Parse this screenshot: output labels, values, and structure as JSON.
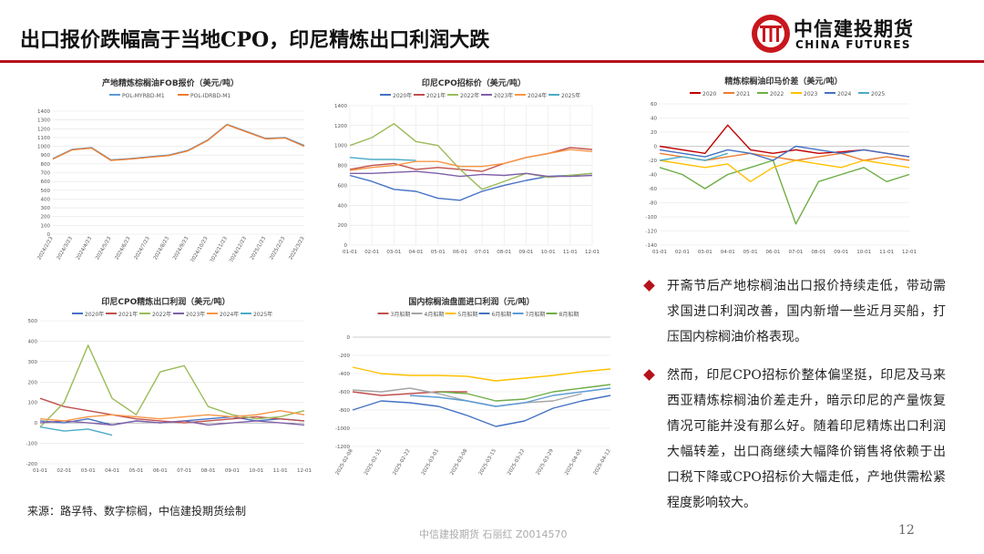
{
  "slide": {
    "title": "出口报价跌幅高于当地CPO，印尼精炼出口利润大跌",
    "logo_cn": "中信建投期货",
    "logo_en": "CHINA FUTURES",
    "source": "来源：路孚特、数字棕榈，中信建投期货绘制",
    "footer": "中信建投期货  石丽红  Z0014570",
    "page": "12",
    "accent": "#b5121b"
  },
  "bullets": [
    {
      "text": "开斋节后产地棕榈油出口报价持续走低，带动需求国进口利润改善，国内新增一些近月买船，打压国内棕榈油价格表现。"
    },
    {
      "text": "然而，印尼CPO招标价整体偏坚挺，印尼及马来西亚精炼棕榈油价差走升，暗示印尼的产量恢复情况可能并没有那么好。随着印尼精炼出口利润大幅转差，出口商继续大幅降价销售将依赖于出口税下降或CPO招标价大幅走低，产地供需松紧程度影响较大。"
    }
  ],
  "chart_data": [
    {
      "type": "line",
      "title": "产地精炼棕榈油FOB报价（美元/吨）",
      "x": [
        "2024/2/23",
        "2024/3/23",
        "2024/4/23",
        "2024/5/23",
        "2024/6/23",
        "2024/7/23",
        "2024/8/23",
        "2024/9/23",
        "2024/10/23",
        "2024/11/23",
        "2024/12/23",
        "2025/1/23",
        "2025/2/23",
        "2025/3/23"
      ],
      "ylim": [
        0,
        1400
      ],
      "yticks": [
        0,
        100,
        200,
        300,
        400,
        500,
        600,
        700,
        800,
        900,
        1000,
        1100,
        1200,
        1300,
        1400
      ],
      "series": [
        {
          "name": "POL-MYRBD-M1",
          "color": "#5b9bd5",
          "values": [
            860,
            965,
            985,
            845,
            860,
            880,
            900,
            955,
            1070,
            1250,
            1170,
            1090,
            1100,
            1010
          ]
        },
        {
          "name": "POL-IDRBD-M1",
          "color": "#ed7d31",
          "values": [
            855,
            960,
            980,
            840,
            855,
            875,
            895,
            950,
            1065,
            1245,
            1165,
            1085,
            1095,
            1000
          ]
        }
      ]
    },
    {
      "type": "line",
      "title": "印尼CPO招标价（美元/吨）",
      "x": [
        "01-01",
        "02-01",
        "03-01",
        "04-01",
        "05-01",
        "06-01",
        "07-01",
        "08-01",
        "09-01",
        "10-01",
        "11-01",
        "12-01"
      ],
      "ylim": [
        0,
        1400
      ],
      "yticks": [
        0,
        200,
        400,
        600,
        800,
        1000,
        1200,
        1400
      ],
      "series": [
        {
          "name": "2020年",
          "color": "#4472c4",
          "values": [
            700,
            640,
            560,
            540,
            470,
            450,
            540,
            600,
            650,
            690,
            700,
            720
          ]
        },
        {
          "name": "2021年",
          "color": "#c0504d",
          "values": [
            760,
            800,
            820,
            760,
            780,
            760,
            740,
            820,
            880,
            920,
            980,
            960
          ]
        },
        {
          "name": "2022年",
          "color": "#9bbb59",
          "values": [
            1000,
            1080,
            1220,
            1040,
            1000,
            760,
            560,
            640,
            720,
            680,
            700,
            720
          ]
        },
        {
          "name": "2023年",
          "color": "#7f60a8",
          "values": [
            720,
            720,
            730,
            740,
            720,
            690,
            710,
            700,
            720,
            690,
            690,
            700
          ]
        },
        {
          "name": "2024年",
          "color": "#f79646",
          "values": [
            750,
            780,
            800,
            840,
            840,
            790,
            790,
            820,
            880,
            920,
            960,
            940
          ]
        },
        {
          "name": "2025年",
          "color": "#4bacc6",
          "values": [
            880,
            860,
            860,
            850,
            null,
            null,
            null,
            null,
            null,
            null,
            null,
            null
          ]
        }
      ]
    },
    {
      "type": "line",
      "title": "精炼棕榈油印马价差（美元/吨）",
      "x": [
        "01-01",
        "02-01",
        "03-01",
        "04-01",
        "05-01",
        "06-01",
        "07-01",
        "08-01",
        "09-01",
        "10-01",
        "11-01",
        "12-01"
      ],
      "ylim": [
        -140,
        60
      ],
      "yticks": [
        -140,
        -120,
        -100,
        -80,
        -60,
        -40,
        -20,
        0,
        20,
        40,
        60
      ],
      "series": [
        {
          "name": "2020",
          "color": "#c00000",
          "values": [
            0,
            -5,
            -10,
            30,
            -5,
            -10,
            -5,
            -10,
            -8,
            -5,
            -10,
            -15
          ]
        },
        {
          "name": "2021",
          "color": "#ed7d31",
          "values": [
            -10,
            -15,
            -20,
            -15,
            -10,
            -15,
            -20,
            -15,
            -10,
            -20,
            -15,
            -20
          ]
        },
        {
          "name": "2022",
          "color": "#70ad47",
          "values": [
            -30,
            -40,
            -60,
            -40,
            -30,
            -20,
            -110,
            -50,
            -40,
            -30,
            -50,
            -40
          ]
        },
        {
          "name": "2023",
          "color": "#ffc000",
          "values": [
            -20,
            -25,
            -30,
            -25,
            -50,
            -30,
            -20,
            -25,
            -30,
            -20,
            -25,
            -30
          ]
        },
        {
          "name": "2024",
          "color": "#4472c4",
          "values": [
            -5,
            -10,
            -15,
            -5,
            -10,
            -20,
            0,
            -5,
            -10,
            -5,
            -10,
            -15
          ]
        },
        {
          "name": "2025",
          "color": "#4bacc6",
          "values": [
            -20,
            -15,
            -20,
            -10,
            null,
            null,
            null,
            null,
            null,
            null,
            null,
            null
          ]
        }
      ]
    },
    {
      "type": "line",
      "title": "印尼CPO精炼出口利润（美元/吨）",
      "x": [
        "01-01",
        "02-01",
        "03-01",
        "04-01",
        "05-01",
        "06-01",
        "07-01",
        "08-01",
        "09-01",
        "10-01",
        "11-01",
        "12-01"
      ],
      "ylim": [
        -200,
        500
      ],
      "yticks": [
        -200,
        -100,
        0,
        100,
        200,
        300,
        400,
        500
      ],
      "series": [
        {
          "name": "2020年",
          "color": "#4472c4",
          "values": [
            10,
            0,
            20,
            -10,
            10,
            0,
            10,
            20,
            30,
            10,
            20,
            10
          ]
        },
        {
          "name": "2021年",
          "color": "#c0504d",
          "values": [
            120,
            80,
            60,
            40,
            20,
            10,
            0,
            10,
            20,
            30,
            20,
            10
          ]
        },
        {
          "name": "2022年",
          "color": "#9bbb59",
          "values": [
            -20,
            100,
            380,
            120,
            40,
            250,
            280,
            80,
            40,
            20,
            30,
            60
          ]
        },
        {
          "name": "2023年",
          "color": "#7f60a8",
          "values": [
            0,
            10,
            0,
            -10,
            10,
            0,
            10,
            -10,
            0,
            10,
            0,
            -10
          ]
        },
        {
          "name": "2024年",
          "color": "#f79646",
          "values": [
            20,
            10,
            30,
            40,
            30,
            20,
            30,
            40,
            30,
            40,
            60,
            40
          ]
        },
        {
          "name": "2025年",
          "color": "#4bacc6",
          "values": [
            -20,
            -40,
            -30,
            -60,
            null,
            null,
            null,
            null,
            null,
            null,
            null,
            null
          ]
        }
      ]
    },
    {
      "type": "line",
      "title": "国内棕榈油盘面进口利润（元/吨）",
      "x": [
        "2025-02-08",
        "2025-02-15",
        "2025-02-22",
        "2025-03-01",
        "2025-03-08",
        "2025-03-15",
        "2025-03-22",
        "2025-03-29",
        "2025-04-05",
        "2025-04-12"
      ],
      "ylim": [
        -1200,
        0
      ],
      "yticks": [
        -1200,
        -1000,
        -800,
        -600,
        -400,
        -200,
        0
      ],
      "series": [
        {
          "name": "3月船期",
          "color": "#c0504d",
          "values": [
            -600,
            -640,
            -620,
            -600,
            -600,
            null,
            null,
            null,
            null,
            null
          ]
        },
        {
          "name": "4月船期",
          "color": "#a5a5a5",
          "values": [
            -580,
            -600,
            -560,
            -620,
            -700,
            -760,
            -720,
            -700,
            -620,
            null
          ]
        },
        {
          "name": "5月船期",
          "color": "#ffc000",
          "values": [
            -330,
            -400,
            -420,
            -420,
            -430,
            -480,
            -450,
            -420,
            -380,
            -350
          ]
        },
        {
          "name": "6月船期",
          "color": "#4472c4",
          "values": [
            -800,
            -700,
            -720,
            -760,
            -860,
            -980,
            -920,
            -780,
            -700,
            -640
          ]
        },
        {
          "name": "7月船期",
          "color": "#5b9bd5",
          "values": [
            null,
            null,
            -640,
            -660,
            -700,
            -760,
            -720,
            -640,
            -600,
            -560
          ]
        },
        {
          "name": "8月船期",
          "color": "#70ad47",
          "values": [
            null,
            null,
            null,
            -600,
            -620,
            -700,
            -680,
            -600,
            -560,
            -520
          ]
        }
      ]
    }
  ]
}
